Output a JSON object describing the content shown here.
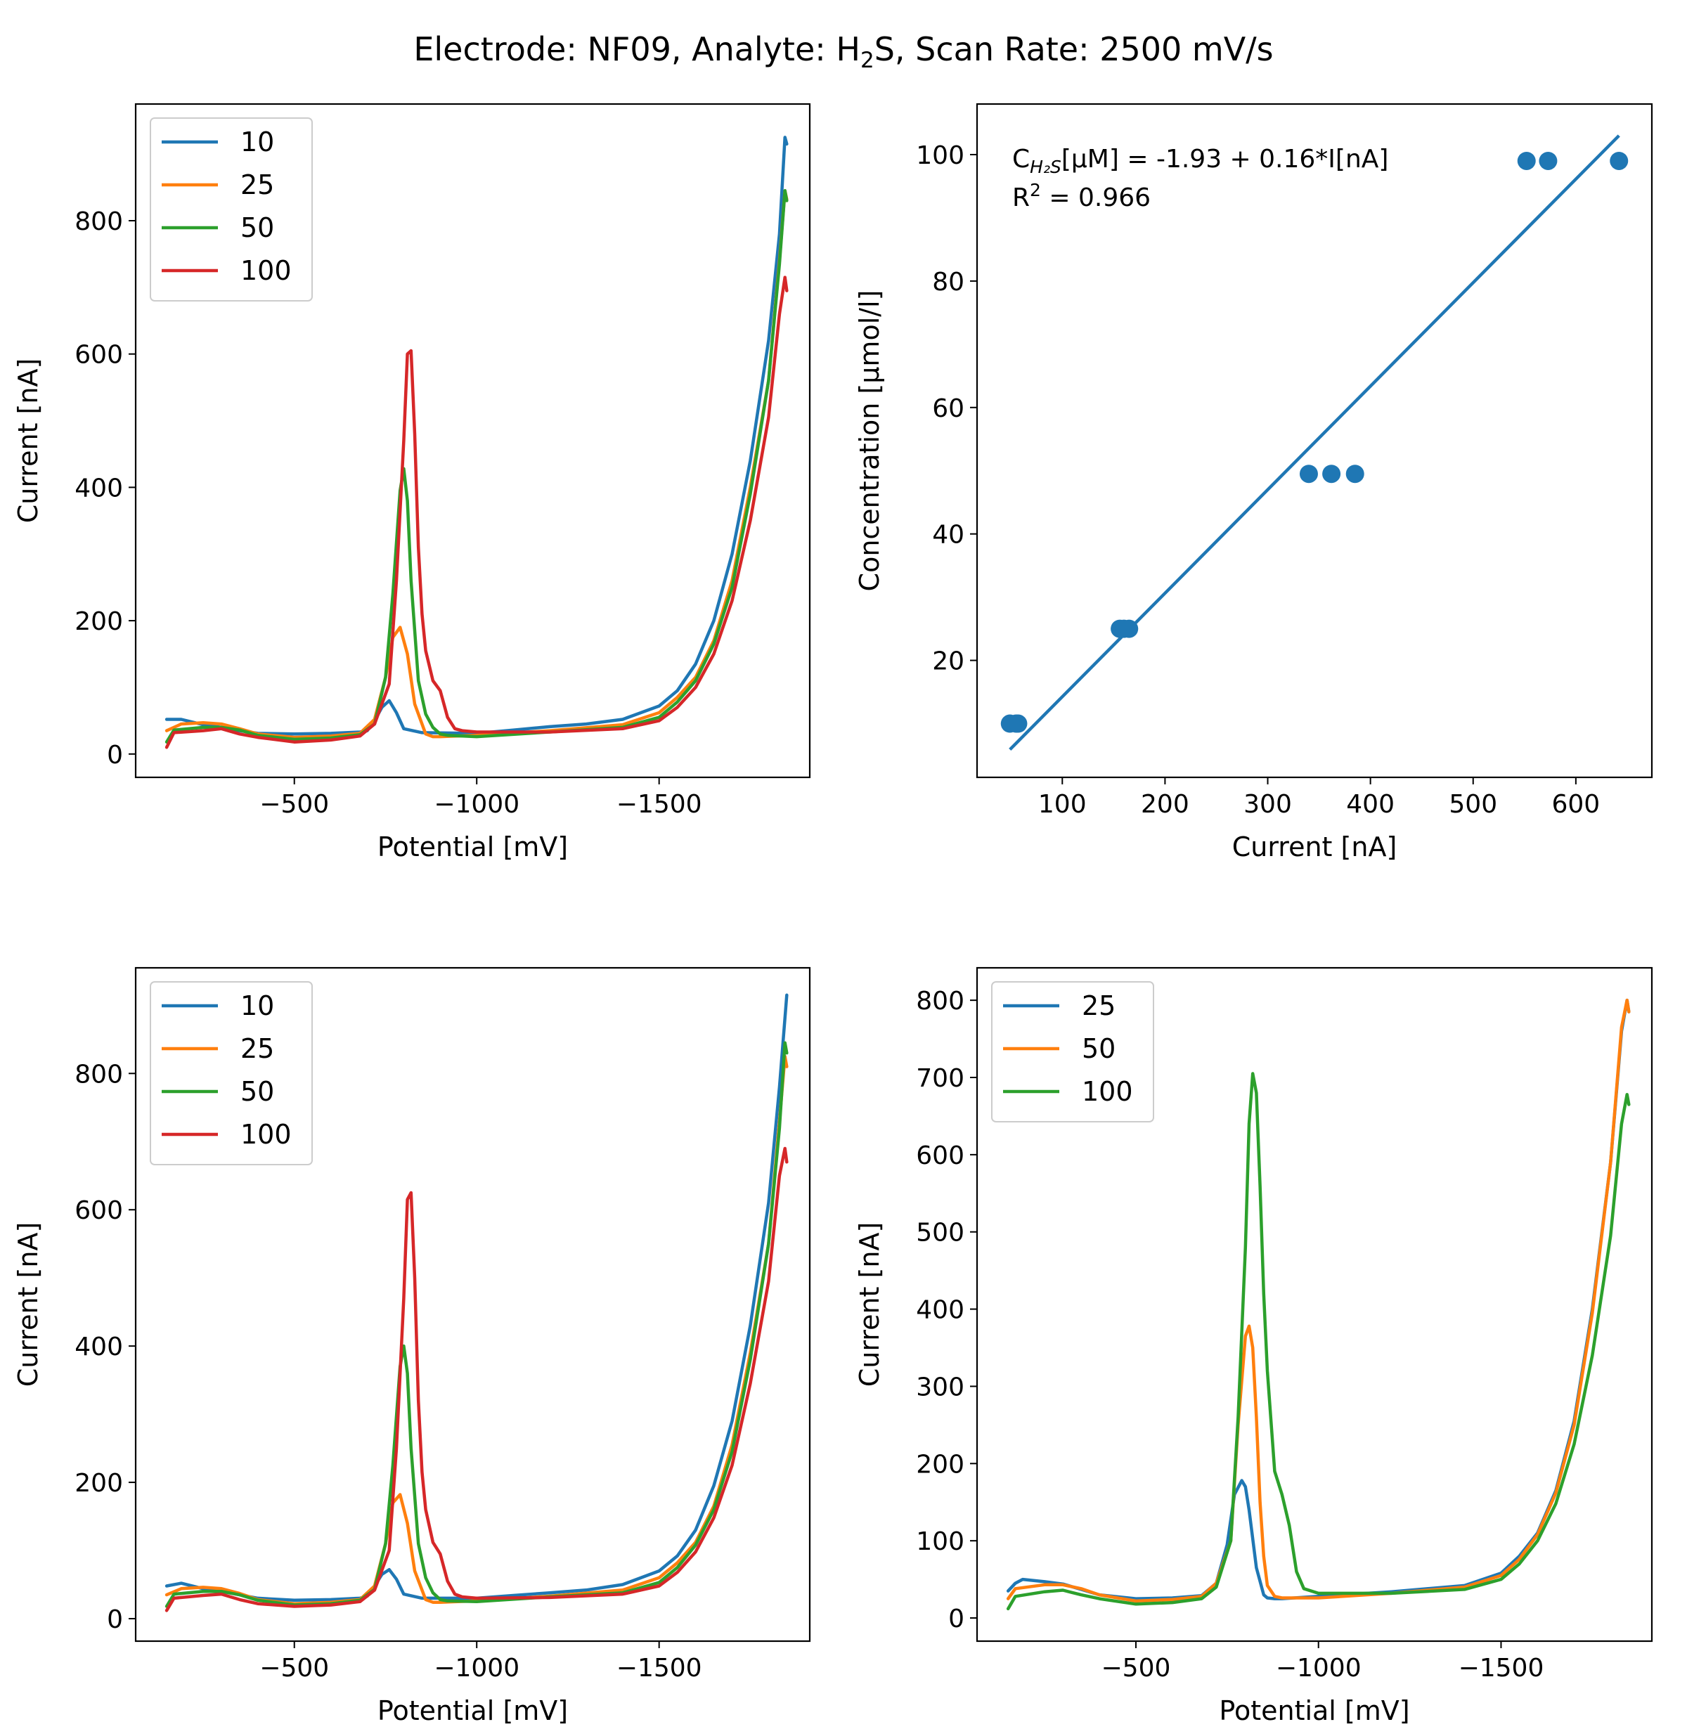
{
  "figure": {
    "title_parts": [
      "Electrode: NF09, Analyte: H",
      "2",
      "S, Scan Rate: 2500 mV/s"
    ]
  },
  "colors": {
    "10": "#1f77b4",
    "25": "#ff7f0e",
    "50": "#2ca02c",
    "100": "#d62728",
    "axis": "#000000"
  },
  "chart_data": [
    {
      "id": "top-left",
      "type": "line",
      "xlabel": "Potential [mV]",
      "ylabel": "Current [nA]",
      "xlim": [
        -65,
        -1913
      ],
      "ylim": [
        -35,
        975
      ],
      "xticks": [
        -500,
        -1000,
        -1500
      ],
      "xtick_labels": [
        "−500",
        "−1000",
        "−1500"
      ],
      "yticks": [
        0,
        200,
        400,
        600,
        800
      ],
      "ytick_labels": [
        "0",
        "200",
        "400",
        "600",
        "800"
      ],
      "legend": "top-left",
      "series": [
        {
          "name": "10",
          "color": "#1f77b4",
          "x": [
            -150,
            -190,
            -250,
            -300,
            -350,
            -400,
            -500,
            -600,
            -680,
            -700,
            -720,
            -740,
            -760,
            -780,
            -800,
            -850,
            -1000,
            -1100,
            -1200,
            -1300,
            -1400,
            -1500,
            -1550,
            -1600,
            -1650,
            -1700,
            -1750,
            -1800,
            -1830,
            -1845,
            -1850
          ],
          "y": [
            52,
            52,
            44,
            40,
            35,
            31,
            30,
            31,
            33,
            35,
            50,
            70,
            80,
            62,
            38,
            32,
            31,
            36,
            41,
            45,
            52,
            72,
            95,
            135,
            200,
            300,
            440,
            620,
            780,
            925,
            915
          ]
        },
        {
          "name": "25",
          "color": "#ff7f0e",
          "x": [
            -150,
            -190,
            -250,
            -300,
            -350,
            -400,
            -500,
            -600,
            -680,
            -720,
            -750,
            -770,
            -790,
            -810,
            -830,
            -860,
            -880,
            -900,
            -1000,
            -1200,
            -1400,
            -1500,
            -1550,
            -1600,
            -1650,
            -1700,
            -1750,
            -1800,
            -1830,
            -1845,
            -1850
          ],
          "y": [
            35,
            45,
            47,
            45,
            38,
            30,
            25,
            27,
            31,
            52,
            115,
            175,
            190,
            150,
            75,
            30,
            26,
            26,
            28,
            35,
            44,
            62,
            85,
            115,
            170,
            260,
            400,
            560,
            740,
            845,
            832
          ]
        },
        {
          "name": "50",
          "color": "#2ca02c",
          "x": [
            -150,
            -170,
            -250,
            -300,
            -350,
            -400,
            -500,
            -600,
            -680,
            -720,
            -750,
            -770,
            -790,
            -800,
            -810,
            -820,
            -840,
            -860,
            -880,
            -900,
            -920,
            -1000,
            -1200,
            -1400,
            -1500,
            -1550,
            -1600,
            -1650,
            -1700,
            -1750,
            -1800,
            -1830,
            -1845,
            -1850
          ],
          "y": [
            18,
            36,
            40,
            40,
            36,
            28,
            22,
            24,
            29,
            45,
            115,
            240,
            395,
            428,
            380,
            260,
            110,
            60,
            40,
            30,
            28,
            26,
            33,
            40,
            55,
            78,
            110,
            165,
            250,
            390,
            560,
            735,
            845,
            830
          ]
        },
        {
          "name": "100",
          "color": "#d62728",
          "x": [
            -150,
            -170,
            -250,
            -300,
            -350,
            -400,
            -500,
            -600,
            -680,
            -720,
            -760,
            -780,
            -800,
            -810,
            -820,
            -830,
            -840,
            -850,
            -860,
            -880,
            -900,
            -920,
            -940,
            -960,
            -1000,
            -1200,
            -1400,
            -1500,
            -1550,
            -1600,
            -1650,
            -1700,
            -1750,
            -1800,
            -1830,
            -1845,
            -1850
          ],
          "y": [
            10,
            32,
            35,
            38,
            30,
            25,
            18,
            21,
            27,
            45,
            105,
            260,
            470,
            600,
            605,
            480,
            310,
            210,
            155,
            110,
            95,
            55,
            38,
            35,
            33,
            33,
            38,
            50,
            70,
            100,
            150,
            230,
            350,
            505,
            660,
            715,
            695
          ]
        }
      ]
    },
    {
      "id": "top-right",
      "type": "scatter",
      "xlabel": "Current [nA]",
      "ylabel": "Concentration [μmol/l]",
      "xlim": [
        17,
        674
      ],
      "ylim": [
        1.5,
        108
      ],
      "xticks": [
        100,
        200,
        300,
        400,
        500,
        600
      ],
      "xtick_labels": [
        "100",
        "200",
        "300",
        "400",
        "500",
        "600"
      ],
      "yticks": [
        20,
        40,
        60,
        80,
        100
      ],
      "ytick_labels": [
        "20",
        "40",
        "60",
        "80",
        "100"
      ],
      "annotation": {
        "line1_parts": [
          "C",
          "H₂S",
          "[μM] = -1.93 + 0.16*I[nA]"
        ],
        "line2_parts": [
          "R",
          "2",
          " = 0.966"
        ]
      },
      "points": {
        "x": [
          49,
          55,
          57,
          156,
          160,
          165,
          340,
          362,
          385,
          552,
          573,
          642
        ],
        "y": [
          10,
          10,
          10,
          25,
          25,
          25,
          49.5,
          49.5,
          49.5,
          99,
          99,
          99
        ]
      },
      "fit": {
        "intercept": -1.93,
        "slope": 0.16,
        "x": [
          49,
          642
        ],
        "y": [
          5.9,
          103
        ]
      }
    },
    {
      "id": "bottom-left",
      "type": "line",
      "xlabel": "Potential [mV]",
      "ylabel": "Current [nA]",
      "xlim": [
        -65,
        -1913
      ],
      "ylim": [
        -33,
        955
      ],
      "xticks": [
        -500,
        -1000,
        -1500
      ],
      "xtick_labels": [
        "−500",
        "−1000",
        "−1500"
      ],
      "yticks": [
        0,
        200,
        400,
        600,
        800
      ],
      "ytick_labels": [
        "0",
        "200",
        "400",
        "600",
        "800"
      ],
      "legend": "top-left",
      "series": [
        {
          "name": "10",
          "color": "#1f77b4",
          "x": [
            -150,
            -190,
            -250,
            -300,
            -350,
            -400,
            -500,
            -600,
            -680,
            -700,
            -720,
            -740,
            -760,
            -780,
            -800,
            -850,
            -1000,
            -1100,
            -1200,
            -1300,
            -1400,
            -1500,
            -1550,
            -1600,
            -1650,
            -1700,
            -1750,
            -1800,
            -1830,
            -1850
          ],
          "y": [
            48,
            52,
            44,
            40,
            35,
            30,
            27,
            28,
            30,
            33,
            48,
            65,
            72,
            58,
            36,
            30,
            30,
            34,
            38,
            42,
            50,
            70,
            92,
            130,
            195,
            290,
            430,
            610,
            780,
            915
          ]
        },
        {
          "name": "25",
          "color": "#ff7f0e",
          "x": [
            -150,
            -190,
            -250,
            -300,
            -350,
            -400,
            -500,
            -600,
            -680,
            -720,
            -750,
            -770,
            -790,
            -810,
            -830,
            -860,
            -880,
            -900,
            -1000,
            -1200,
            -1400,
            -1500,
            -1550,
            -1600,
            -1650,
            -1700,
            -1750,
            -1800,
            -1830,
            -1845,
            -1850
          ],
          "y": [
            35,
            44,
            46,
            44,
            37,
            28,
            22,
            24,
            28,
            48,
            110,
            170,
            182,
            140,
            70,
            28,
            24,
            24,
            26,
            33,
            42,
            60,
            82,
            112,
            165,
            255,
            390,
            550,
            730,
            825,
            810
          ]
        },
        {
          "name": "50",
          "color": "#2ca02c",
          "x": [
            -150,
            -170,
            -250,
            -300,
            -350,
            -400,
            -500,
            -600,
            -680,
            -720,
            -750,
            -770,
            -790,
            -800,
            -810,
            -820,
            -840,
            -860,
            -880,
            -900,
            -920,
            -1000,
            -1200,
            -1400,
            -1500,
            -1550,
            -1600,
            -1650,
            -1700,
            -1750,
            -1800,
            -1830,
            -1845,
            -1850
          ],
          "y": [
            18,
            36,
            40,
            40,
            35,
            27,
            20,
            22,
            27,
            43,
            110,
            225,
            370,
            400,
            360,
            250,
            110,
            60,
            38,
            28,
            26,
            25,
            32,
            38,
            53,
            75,
            108,
            160,
            245,
            380,
            550,
            720,
            845,
            830
          ]
        },
        {
          "name": "100",
          "color": "#d62728",
          "x": [
            -150,
            -170,
            -250,
            -300,
            -350,
            -400,
            -500,
            -600,
            -680,
            -720,
            -760,
            -780,
            -800,
            -810,
            -820,
            -830,
            -840,
            -850,
            -860,
            -880,
            -900,
            -920,
            -940,
            -960,
            -1000,
            -1200,
            -1400,
            -1500,
            -1550,
            -1600,
            -1650,
            -1700,
            -1750,
            -1800,
            -1830,
            -1845,
            -1850
          ],
          "y": [
            12,
            30,
            34,
            36,
            28,
            22,
            18,
            20,
            25,
            42,
            100,
            250,
            470,
            615,
            625,
            500,
            320,
            215,
            160,
            112,
            95,
            55,
            36,
            32,
            30,
            31,
            36,
            48,
            68,
            98,
            148,
            225,
            345,
            495,
            650,
            690,
            670
          ]
        }
      ]
    },
    {
      "id": "bottom-right",
      "type": "line",
      "xlabel": "Potential [mV]",
      "ylabel": "Current [nA]",
      "xlim": [
        -65,
        -1913
      ],
      "ylim": [
        -30,
        842
      ],
      "xticks": [
        -500,
        -1000,
        -1500
      ],
      "xtick_labels": [
        "−500",
        "−1000",
        "−1500"
      ],
      "yticks": [
        0,
        100,
        200,
        300,
        400,
        500,
        600,
        700,
        800
      ],
      "ytick_labels": [
        "0",
        "100",
        "200",
        "300",
        "400",
        "500",
        "600",
        "700",
        "800"
      ],
      "legend": "top-left",
      "series": [
        {
          "name": "25",
          "color": "#1f77b4",
          "x": [
            -150,
            -170,
            -190,
            -250,
            -300,
            -350,
            -400,
            -500,
            -600,
            -680,
            -720,
            -750,
            -770,
            -790,
            -800,
            -810,
            -830,
            -850,
            -860,
            -880,
            -900,
            -1000,
            -1200,
            -1400,
            -1500,
            -1550,
            -1600,
            -1650,
            -1700,
            -1750,
            -1800,
            -1830,
            -1845,
            -1850
          ],
          "y": [
            35,
            45,
            50,
            47,
            44,
            37,
            30,
            25,
            26,
            29,
            45,
            95,
            160,
            178,
            170,
            140,
            65,
            30,
            26,
            25,
            25,
            28,
            34,
            42,
            58,
            80,
            110,
            165,
            255,
            400,
            590,
            760,
            800,
            785
          ]
        },
        {
          "name": "50",
          "color": "#ff7f0e",
          "x": [
            -150,
            -170,
            -250,
            -300,
            -350,
            -400,
            -500,
            -600,
            -680,
            -720,
            -760,
            -780,
            -800,
            -810,
            -820,
            -830,
            -840,
            -850,
            -860,
            -880,
            -900,
            -1000,
            -1200,
            -1400,
            -1500,
            -1550,
            -1600,
            -1650,
            -1700,
            -1750,
            -1800,
            -1830,
            -1845,
            -1850
          ],
          "y": [
            25,
            38,
            43,
            43,
            38,
            30,
            22,
            24,
            28,
            45,
            100,
            250,
            365,
            378,
            350,
            260,
            150,
            80,
            42,
            28,
            26,
            26,
            32,
            40,
            55,
            76,
            108,
            162,
            250,
            395,
            590,
            765,
            800,
            785
          ]
        },
        {
          "name": "100",
          "color": "#2ca02c",
          "x": [
            -150,
            -170,
            -250,
            -300,
            -350,
            -400,
            -500,
            -600,
            -680,
            -720,
            -760,
            -780,
            -800,
            -810,
            -820,
            -830,
            -840,
            -850,
            -860,
            -880,
            -900,
            -920,
            -940,
            -960,
            -1000,
            -1200,
            -1400,
            -1500,
            -1550,
            -1600,
            -1650,
            -1700,
            -1750,
            -1800,
            -1830,
            -1845,
            -1850
          ],
          "y": [
            12,
            28,
            34,
            36,
            30,
            25,
            18,
            20,
            25,
            40,
            100,
            260,
            480,
            640,
            705,
            680,
            560,
            420,
            320,
            190,
            160,
            120,
            60,
            38,
            32,
            32,
            37,
            50,
            70,
            100,
            148,
            225,
            340,
            495,
            640,
            678,
            665
          ]
        }
      ]
    }
  ]
}
